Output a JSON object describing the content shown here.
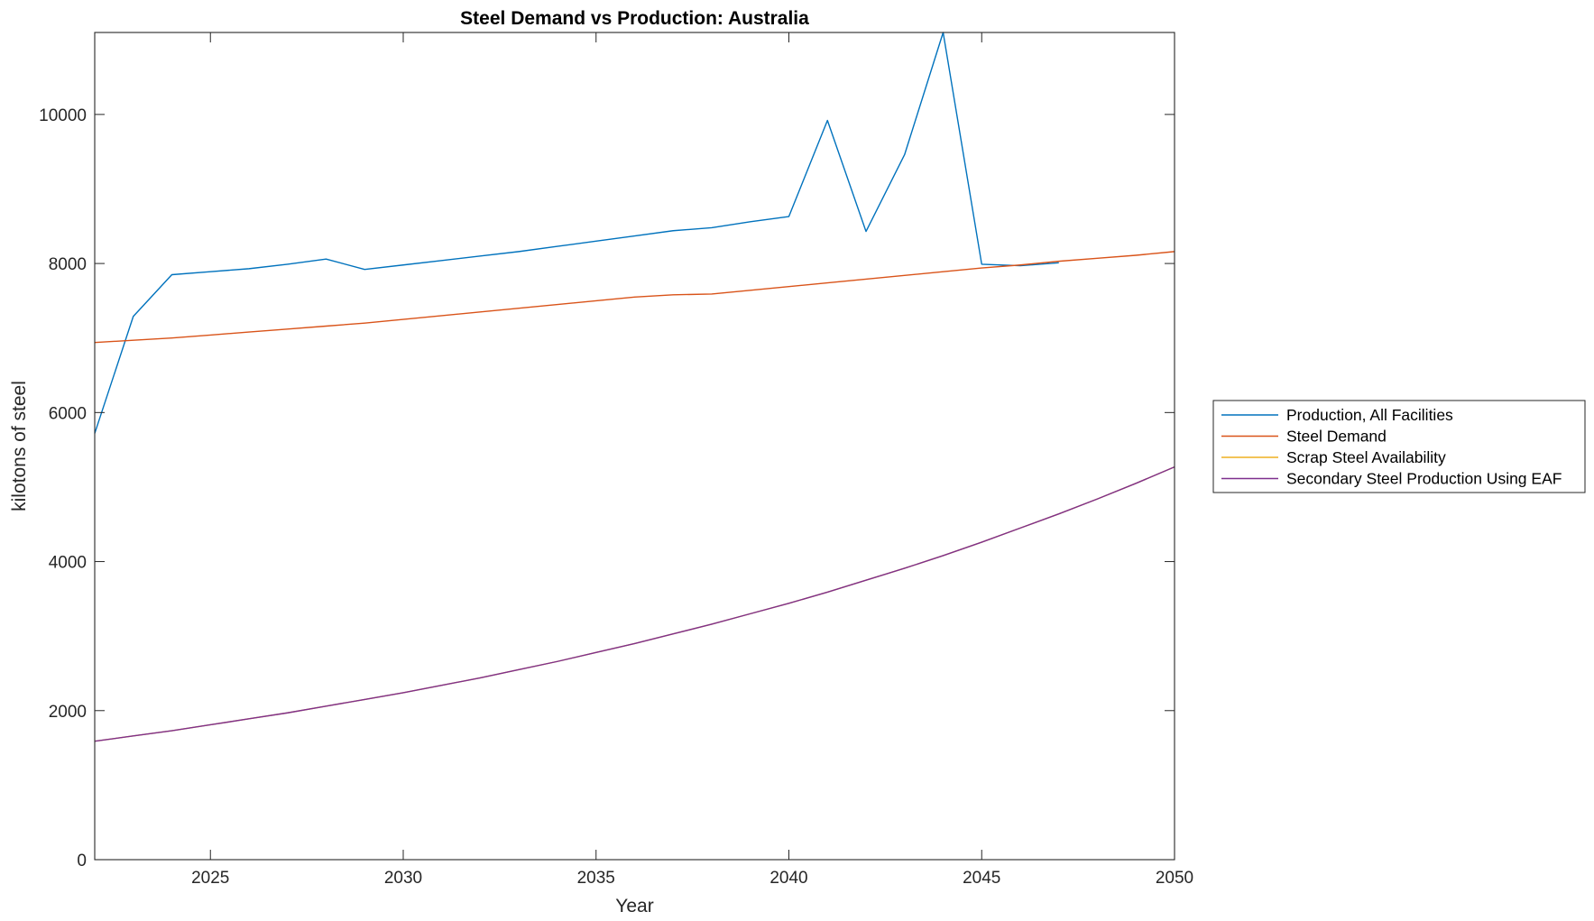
{
  "chart_data": {
    "type": "line",
    "title": "Steel Demand vs Production: Australia",
    "xlabel": "Year",
    "ylabel": "kilotons of steel",
    "xlim": [
      2022,
      2050
    ],
    "ylim": [
      0,
      11100
    ],
    "xticks": [
      2025,
      2030,
      2035,
      2040,
      2045,
      2050
    ],
    "yticks": [
      0,
      2000,
      4000,
      6000,
      8000,
      10000
    ],
    "grid": false,
    "legend_position": "outside-right",
    "x": [
      2022,
      2023,
      2024,
      2025,
      2026,
      2027,
      2028,
      2029,
      2030,
      2031,
      2032,
      2033,
      2034,
      2035,
      2036,
      2037,
      2038,
      2039,
      2040,
      2041,
      2042,
      2043,
      2044,
      2045,
      2046,
      2047,
      2048,
      2049,
      2050
    ],
    "series": [
      {
        "name": "Production, All Facilities",
        "color": "#0072BD",
        "values": [
          5720,
          7290,
          7850,
          7890,
          7930,
          7990,
          8060,
          7920,
          7980,
          8040,
          8100,
          8160,
          8230,
          8300,
          8370,
          8440,
          8480,
          8560,
          8630,
          9920,
          8430,
          9460,
          11100,
          7990,
          7970,
          8010,
          null,
          null,
          null
        ]
      },
      {
        "name": "Steel Demand",
        "color": "#D95319",
        "values": [
          6940,
          6970,
          7000,
          7040,
          7080,
          7120,
          7160,
          7200,
          7250,
          7300,
          7350,
          7400,
          7450,
          7500,
          7550,
          7580,
          7590,
          7640,
          7690,
          7740,
          7790,
          7840,
          7890,
          7940,
          7980,
          8030,
          8070,
          8110,
          8160
        ]
      },
      {
        "name": "Scrap Steel Availability",
        "color": "#EDB120",
        "values": [
          1590,
          1660,
          1730,
          1810,
          1890,
          1970,
          2060,
          2150,
          2240,
          2340,
          2440,
          2550,
          2660,
          2780,
          2900,
          3030,
          3160,
          3300,
          3440,
          3590,
          3750,
          3910,
          4080,
          4260,
          4450,
          4640,
          4840,
          5050,
          5270
        ]
      },
      {
        "name": "Secondary Steel Production Using EAF",
        "color": "#7E2F8E",
        "values": [
          1590,
          1660,
          1730,
          1810,
          1890,
          1970,
          2060,
          2150,
          2240,
          2340,
          2440,
          2550,
          2660,
          2780,
          2900,
          3030,
          3160,
          3300,
          3440,
          3590,
          3750,
          3910,
          4080,
          4260,
          4450,
          4640,
          4840,
          5050,
          5270
        ]
      }
    ]
  }
}
